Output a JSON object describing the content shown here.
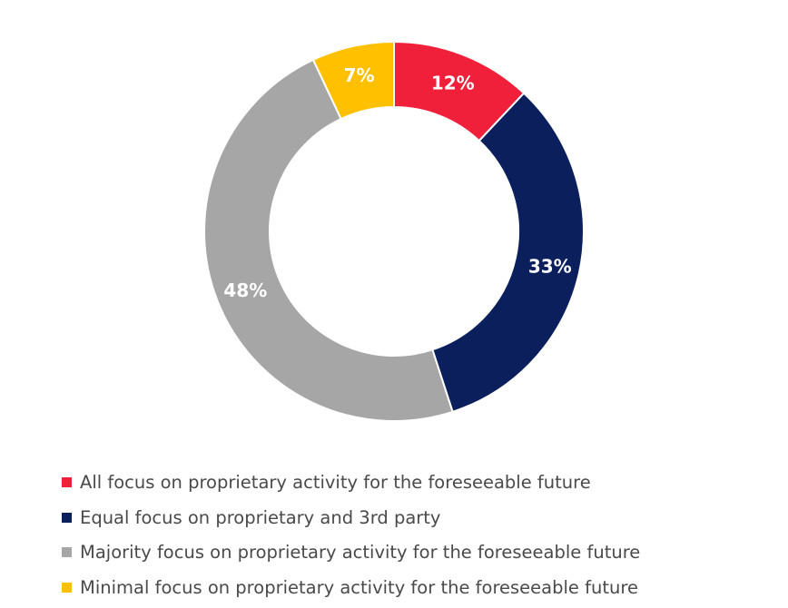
{
  "chart_data": {
    "type": "pie",
    "variant": "donut",
    "categories": [
      "All focus on proprietary activity for the foreseeable future",
      "Equal focus on proprietary and 3rd party",
      "Majority focus on proprietary activity for the foreseeable future",
      "Minimal focus on proprietary activity for the foreseeable future"
    ],
    "values": [
      12,
      33,
      48,
      7
    ],
    "labels": [
      "12%",
      "33%",
      "48%",
      "7%"
    ],
    "colors": [
      "#f0203a",
      "#0b1f5c",
      "#a6a6a6",
      "#ffc000"
    ],
    "legend_position": "bottom"
  }
}
